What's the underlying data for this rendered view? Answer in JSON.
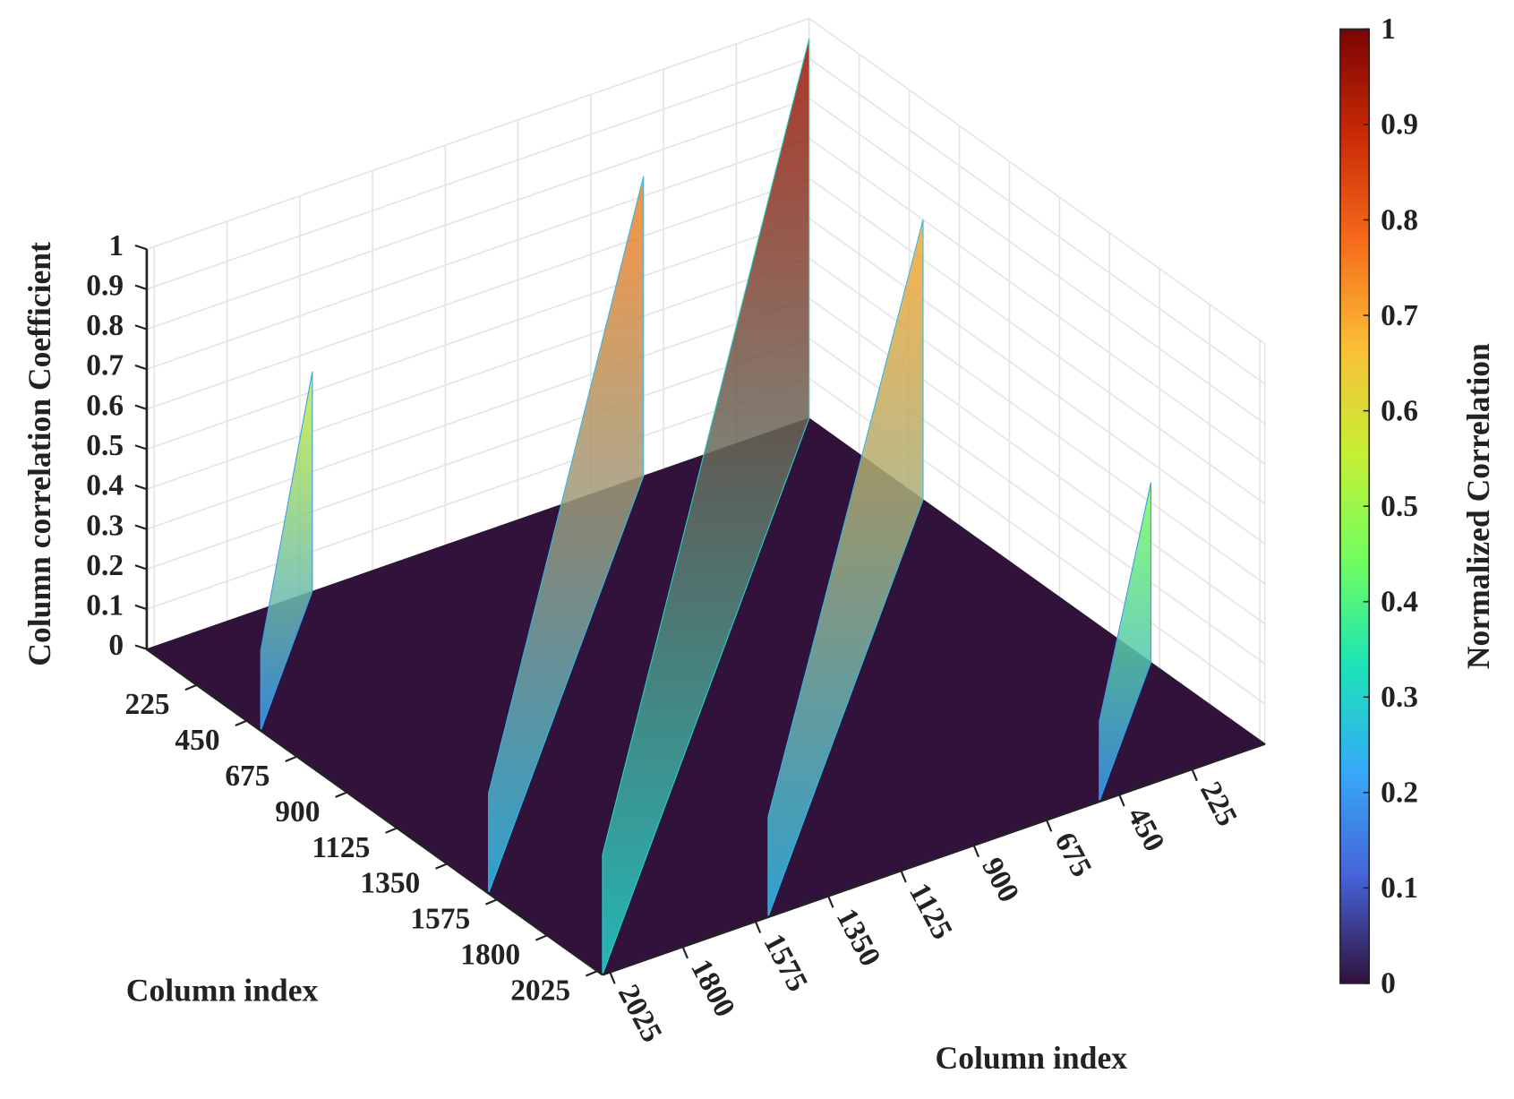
{
  "chart_data": {
    "type": "surface3d",
    "zlabel": "Column correlation Coefficient",
    "xlabel": "Column index",
    "ylabel": "Column index",
    "colorbar_label": "Normalized Correlation",
    "xlim": [
      0,
      2048
    ],
    "ylim": [
      0,
      2048
    ],
    "zlim": [
      0,
      1
    ],
    "xticks": [
      225,
      450,
      675,
      900,
      1125,
      1350,
      1575,
      1800,
      2025
    ],
    "yticks": [
      225,
      450,
      675,
      900,
      1125,
      1350,
      1575,
      1800,
      2025
    ],
    "zticks": [
      0,
      0.1,
      0.2,
      0.3,
      0.4,
      0.5,
      0.6,
      0.7,
      0.8,
      0.9,
      1
    ],
    "clim": [
      0,
      1
    ],
    "cticks": [
      0,
      0.1,
      0.2,
      0.3,
      0.4,
      0.5,
      0.6,
      0.7,
      0.8,
      0.9,
      1
    ],
    "colormap": [
      "#30123b",
      "#4662d7",
      "#36aaf9",
      "#1ae4b6",
      "#72fe5e",
      "#c7ef34",
      "#fabf36",
      "#f66b19",
      "#ca2a04",
      "#7a0403"
    ],
    "grid": true,
    "ridges": [
      {
        "offset": 1536,
        "values": [
          0.55,
          0.2
        ]
      },
      {
        "offset": 512,
        "values": [
          0.75,
          0.25
        ]
      },
      {
        "offset": 0,
        "values": [
          0.95,
          0.3
        ]
      },
      {
        "offset": -512,
        "values": [
          0.7,
          0.25
        ]
      },
      {
        "offset": -1536,
        "values": [
          0.45,
          0.2
        ]
      }
    ]
  }
}
